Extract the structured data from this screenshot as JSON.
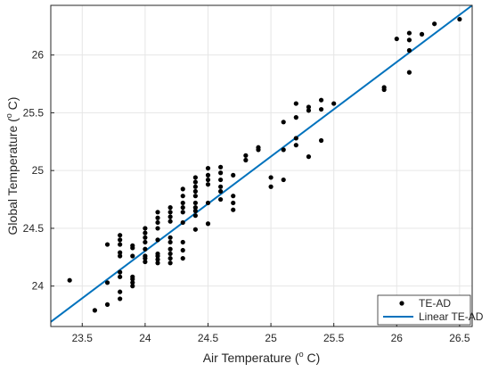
{
  "chart_data": {
    "type": "scatter",
    "xlabel": "Air Temperature (",
    "xlabel_sup": "o",
    "xlabel_tail": " C)",
    "ylabel": "Global Temperature (",
    "ylabel_sup": "o",
    "ylabel_tail": " C)",
    "xlim": [
      23.25,
      26.6
    ],
    "ylim": [
      23.65,
      26.43
    ],
    "xticks": [
      23.5,
      24,
      24.5,
      25,
      25.5,
      26,
      26.5
    ],
    "yticks": [
      24,
      24.5,
      25,
      25.5,
      26
    ],
    "xtick_labels": [
      "23.5",
      "24",
      "24.5",
      "25",
      "25.5",
      "26",
      "26.5"
    ],
    "ytick_labels": [
      "24",
      "24.5",
      "25",
      "25.5",
      "26"
    ],
    "grid": true,
    "legend_position": "bottom-right",
    "colors": {
      "points": "#000000",
      "fit": "#0072BD",
      "grid": "#e6e6e6",
      "axes": "#262626"
    },
    "series": [
      {
        "name": "TE-AD",
        "kind": "points",
        "points": [
          [
            23.4,
            24.05
          ],
          [
            23.6,
            23.79
          ],
          [
            23.7,
            23.84
          ],
          [
            23.7,
            24.03
          ],
          [
            23.7,
            24.36
          ],
          [
            23.8,
            23.89
          ],
          [
            23.8,
            23.95
          ],
          [
            23.8,
            24.08
          ],
          [
            23.8,
            24.12
          ],
          [
            23.8,
            24.26
          ],
          [
            23.8,
            24.29
          ],
          [
            23.8,
            24.36
          ],
          [
            23.8,
            24.4
          ],
          [
            23.8,
            24.44
          ],
          [
            23.9,
            24.0
          ],
          [
            23.9,
            24.03
          ],
          [
            23.9,
            24.06
          ],
          [
            23.9,
            24.08
          ],
          [
            23.9,
            24.26
          ],
          [
            23.9,
            24.33
          ],
          [
            23.9,
            24.35
          ],
          [
            24.0,
            24.21
          ],
          [
            24.0,
            24.24
          ],
          [
            24.0,
            24.26
          ],
          [
            24.0,
            24.32
          ],
          [
            24.0,
            24.38
          ],
          [
            24.0,
            24.42
          ],
          [
            24.0,
            24.46
          ],
          [
            24.0,
            24.5
          ],
          [
            24.1,
            24.2
          ],
          [
            24.1,
            24.23
          ],
          [
            24.1,
            24.26
          ],
          [
            24.1,
            24.28
          ],
          [
            24.1,
            24.4
          ],
          [
            24.1,
            24.5
          ],
          [
            24.1,
            24.55
          ],
          [
            24.1,
            24.59
          ],
          [
            24.1,
            24.64
          ],
          [
            24.2,
            24.2
          ],
          [
            24.2,
            24.24
          ],
          [
            24.2,
            24.28
          ],
          [
            24.2,
            24.32
          ],
          [
            24.2,
            24.38
          ],
          [
            24.2,
            24.42
          ],
          [
            24.2,
            24.56
          ],
          [
            24.2,
            24.6
          ],
          [
            24.2,
            24.64
          ],
          [
            24.2,
            24.68
          ],
          [
            24.3,
            24.24
          ],
          [
            24.3,
            24.31
          ],
          [
            24.3,
            24.38
          ],
          [
            24.3,
            24.55
          ],
          [
            24.3,
            24.64
          ],
          [
            24.3,
            24.68
          ],
          [
            24.3,
            24.72
          ],
          [
            24.3,
            24.78
          ],
          [
            24.3,
            24.84
          ],
          [
            24.4,
            24.49
          ],
          [
            24.4,
            24.61
          ],
          [
            24.4,
            24.65
          ],
          [
            24.4,
            24.68
          ],
          [
            24.4,
            24.72
          ],
          [
            24.4,
            24.78
          ],
          [
            24.4,
            24.82
          ],
          [
            24.4,
            24.86
          ],
          [
            24.4,
            24.9
          ],
          [
            24.4,
            24.94
          ],
          [
            24.5,
            24.54
          ],
          [
            24.5,
            24.72
          ],
          [
            24.5,
            24.88
          ],
          [
            24.5,
            24.92
          ],
          [
            24.5,
            24.96
          ],
          [
            24.5,
            25.02
          ],
          [
            24.6,
            24.75
          ],
          [
            24.6,
            24.82
          ],
          [
            24.6,
            24.86
          ],
          [
            24.6,
            24.92
          ],
          [
            24.6,
            24.98
          ],
          [
            24.6,
            25.03
          ],
          [
            24.7,
            24.66
          ],
          [
            24.7,
            24.72
          ],
          [
            24.7,
            24.78
          ],
          [
            24.7,
            24.96
          ],
          [
            24.8,
            25.09
          ],
          [
            24.8,
            25.13
          ],
          [
            24.9,
            25.18
          ],
          [
            24.9,
            25.2
          ],
          [
            25.0,
            24.86
          ],
          [
            25.0,
            24.94
          ],
          [
            25.1,
            24.92
          ],
          [
            25.1,
            25.18
          ],
          [
            25.1,
            25.42
          ],
          [
            25.2,
            25.22
          ],
          [
            25.2,
            25.28
          ],
          [
            25.2,
            25.46
          ],
          [
            25.2,
            25.58
          ],
          [
            25.3,
            25.12
          ],
          [
            25.3,
            25.52
          ],
          [
            25.3,
            25.55
          ],
          [
            25.4,
            25.26
          ],
          [
            25.4,
            25.53
          ],
          [
            25.4,
            25.61
          ],
          [
            25.5,
            25.58
          ],
          [
            25.9,
            25.7
          ],
          [
            25.9,
            25.72
          ],
          [
            26.0,
            26.14
          ],
          [
            26.1,
            25.85
          ],
          [
            26.1,
            26.04
          ],
          [
            26.1,
            26.13
          ],
          [
            26.1,
            26.19
          ],
          [
            26.2,
            26.18
          ],
          [
            26.3,
            26.27
          ],
          [
            26.5,
            26.31
          ]
        ]
      },
      {
        "name": "Linear TE-AD",
        "kind": "line",
        "points": [
          [
            23.25,
            23.69
          ],
          [
            26.6,
            26.43
          ]
        ]
      }
    ]
  }
}
